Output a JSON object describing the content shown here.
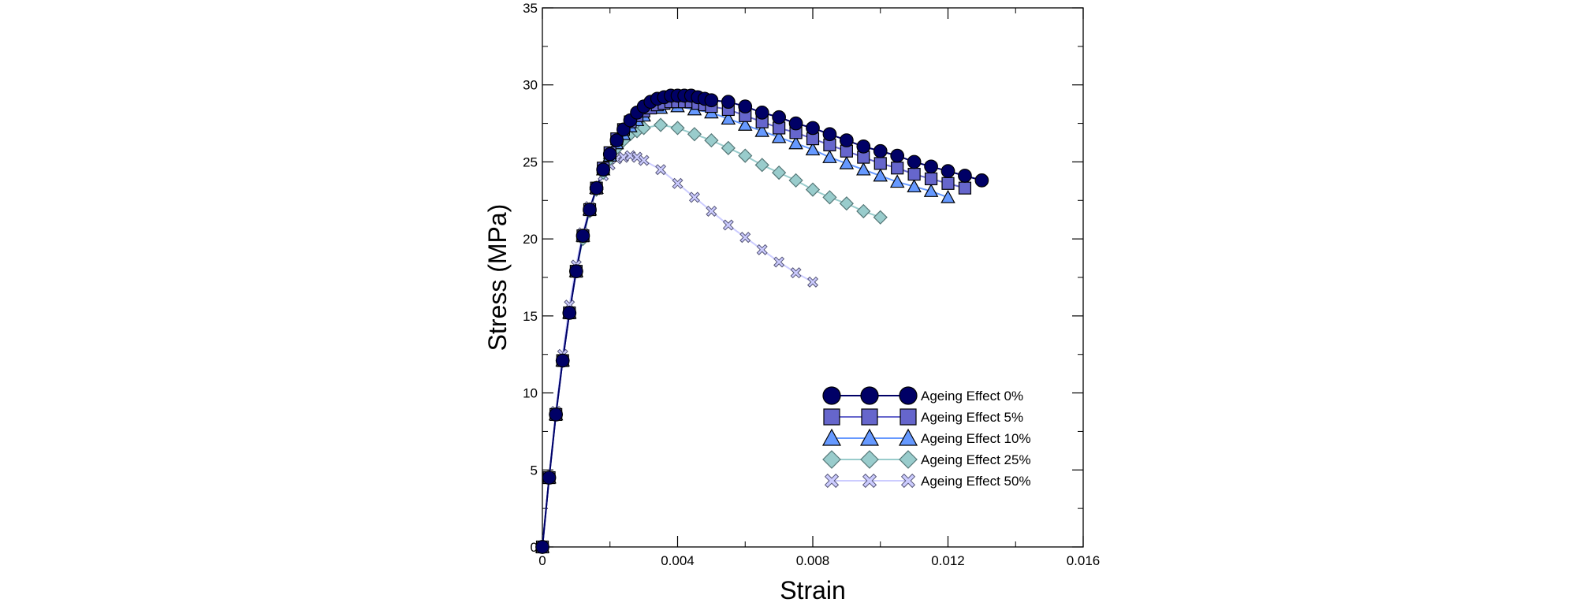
{
  "chart_data": {
    "type": "line",
    "title": "",
    "xlabel": "Strain",
    "ylabel": "Stress (MPa)",
    "xlim": [
      0,
      0.016
    ],
    "ylim": [
      0,
      35
    ],
    "xticks": [
      0,
      0.004,
      0.008,
      0.012,
      0.016
    ],
    "xtick_labels": [
      "0",
      "0.004",
      "0.008",
      "0.012",
      "0.016"
    ],
    "yticks": [
      0,
      5,
      10,
      15,
      20,
      25,
      30,
      35
    ],
    "ytick_labels": [
      "0",
      "5",
      "10",
      "15",
      "20",
      "25",
      "30",
      "35"
    ],
    "grid": false,
    "legend_position": "bottom-right",
    "series": [
      {
        "name": "Ageing Effect 0%",
        "color": "#000066",
        "marker": "circle",
        "x": [
          0,
          0.0002,
          0.0004,
          0.0006,
          0.0008,
          0.001,
          0.0012,
          0.0014,
          0.0016,
          0.0018,
          0.002,
          0.0022,
          0.0024,
          0.0026,
          0.0028,
          0.003,
          0.0032,
          0.0034,
          0.0036,
          0.0038,
          0.004,
          0.0042,
          0.0044,
          0.0046,
          0.0048,
          0.005,
          0.0055,
          0.006,
          0.0065,
          0.007,
          0.0075,
          0.008,
          0.0085,
          0.009,
          0.0095,
          0.01,
          0.0105,
          0.011,
          0.0115,
          0.012,
          0.0125,
          0.013
        ],
        "y": [
          0,
          4.5,
          8.6,
          12.1,
          15.2,
          17.9,
          20.2,
          21.9,
          23.3,
          24.5,
          25.5,
          26.4,
          27.1,
          27.7,
          28.2,
          28.6,
          28.9,
          29.1,
          29.2,
          29.3,
          29.3,
          29.3,
          29.3,
          29.2,
          29.1,
          29.0,
          28.9,
          28.6,
          28.2,
          27.9,
          27.5,
          27.2,
          26.8,
          26.4,
          26.0,
          25.7,
          25.4,
          25.0,
          24.7,
          24.4,
          24.1,
          23.8
        ]
      },
      {
        "name": "Ageing Effect 5%",
        "color": "#6666CC",
        "marker": "square",
        "x": [
          0,
          0.0002,
          0.0004,
          0.0006,
          0.0008,
          0.001,
          0.0012,
          0.0014,
          0.0016,
          0.0018,
          0.002,
          0.0022,
          0.0024,
          0.0026,
          0.0028,
          0.003,
          0.0032,
          0.0034,
          0.0036,
          0.0038,
          0.004,
          0.0042,
          0.0044,
          0.0046,
          0.0048,
          0.005,
          0.0055,
          0.006,
          0.0065,
          0.007,
          0.0075,
          0.008,
          0.0085,
          0.009,
          0.0095,
          0.01,
          0.0105,
          0.011,
          0.0115,
          0.012,
          0.0125
        ],
        "y": [
          0,
          4.5,
          8.6,
          12.1,
          15.2,
          17.9,
          20.2,
          21.9,
          23.3,
          24.6,
          25.6,
          26.5,
          27.1,
          27.6,
          28.0,
          28.3,
          28.5,
          28.7,
          28.8,
          28.9,
          28.9,
          28.9,
          28.9,
          28.8,
          28.7,
          28.6,
          28.4,
          28.0,
          27.6,
          27.2,
          26.9,
          26.5,
          26.1,
          25.7,
          25.3,
          24.9,
          24.6,
          24.2,
          23.9,
          23.6,
          23.3
        ]
      },
      {
        "name": "Ageing Effect 10%",
        "color": "#6699FF",
        "marker": "triangle",
        "x": [
          0,
          0.0002,
          0.0004,
          0.0006,
          0.0008,
          0.001,
          0.0012,
          0.0014,
          0.0016,
          0.0018,
          0.002,
          0.0022,
          0.0024,
          0.0026,
          0.0028,
          0.003,
          0.0035,
          0.004,
          0.0045,
          0.005,
          0.0055,
          0.006,
          0.0065,
          0.007,
          0.0075,
          0.008,
          0.0085,
          0.009,
          0.0095,
          0.01,
          0.0105,
          0.011,
          0.0115,
          0.012
        ],
        "y": [
          0,
          4.5,
          8.6,
          12.1,
          15.2,
          17.9,
          20.2,
          21.9,
          23.3,
          24.5,
          25.4,
          26.2,
          26.8,
          27.3,
          27.7,
          28.0,
          28.5,
          28.6,
          28.4,
          28.2,
          27.8,
          27.4,
          27.0,
          26.6,
          26.2,
          25.8,
          25.3,
          24.9,
          24.5,
          24.1,
          23.7,
          23.4,
          23.1,
          22.7
        ]
      },
      {
        "name": "Ageing Effect 25%",
        "color": "#99CCCC",
        "marker": "diamond",
        "x": [
          0,
          0.0002,
          0.0004,
          0.0006,
          0.0008,
          0.001,
          0.0012,
          0.0014,
          0.0016,
          0.0018,
          0.002,
          0.0022,
          0.0024,
          0.0026,
          0.0028,
          0.003,
          0.0035,
          0.004,
          0.0045,
          0.005,
          0.0055,
          0.006,
          0.0065,
          0.007,
          0.0075,
          0.008,
          0.0085,
          0.009,
          0.0095,
          0.01
        ],
        "y": [
          0,
          4.5,
          8.6,
          12.1,
          15.2,
          17.9,
          20.0,
          21.8,
          23.2,
          24.3,
          25.2,
          25.9,
          26.4,
          26.8,
          27.0,
          27.2,
          27.4,
          27.2,
          26.8,
          26.4,
          25.9,
          25.4,
          24.8,
          24.3,
          23.8,
          23.2,
          22.7,
          22.3,
          21.8,
          21.4
        ]
      },
      {
        "name": "Ageing Effect 50%",
        "color": "#9999CC",
        "marker": "x",
        "x": [
          0,
          0.0002,
          0.0004,
          0.0006,
          0.0008,
          0.001,
          0.0012,
          0.0014,
          0.0016,
          0.0018,
          0.002,
          0.0022,
          0.0024,
          0.0026,
          0.0028,
          0.003,
          0.0035,
          0.004,
          0.0045,
          0.005,
          0.0055,
          0.006,
          0.0065,
          0.007,
          0.0075,
          0.008
        ],
        "y": [
          0,
          4.5,
          8.8,
          12.5,
          15.7,
          18.3,
          20.4,
          22.1,
          23.2,
          24.1,
          24.8,
          25.2,
          25.3,
          25.4,
          25.3,
          25.1,
          24.5,
          23.6,
          22.7,
          21.8,
          20.9,
          20.1,
          19.3,
          18.5,
          17.8,
          17.2
        ]
      }
    ]
  }
}
